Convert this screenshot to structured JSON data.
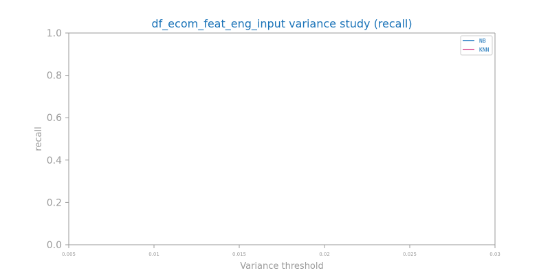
{
  "chart_data": {
    "type": "line",
    "title": "df_ecom_feat_eng_input variance study (recall)",
    "xlabel": "Variance threshold",
    "ylabel": "recall",
    "xlim": [
      0.005,
      0.03
    ],
    "ylim": [
      0.0,
      1.0
    ],
    "x_ticks": [
      "0.005",
      "0.01",
      "0.015",
      "0.02",
      "0.025",
      "0.03"
    ],
    "y_ticks": [
      "0.0",
      "0.2",
      "0.4",
      "0.6",
      "0.8",
      "1.0"
    ],
    "grid": false,
    "legend_position": "top-right",
    "series": [
      {
        "name": "NB",
        "color": "#1f77c0",
        "x": [],
        "y": []
      },
      {
        "name": "KNN",
        "color": "#d6408b",
        "x": [],
        "y": []
      }
    ]
  },
  "colors": {
    "title": "#1a73b8",
    "axis": "#9a9a9a"
  }
}
